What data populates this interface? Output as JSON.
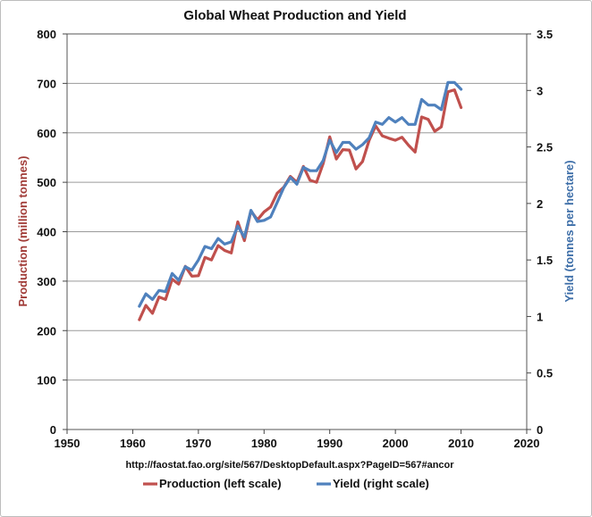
{
  "chart_data": {
    "type": "line",
    "title": "Global Wheat Production and Yield",
    "ylabel": "Production (million tonnes)",
    "y2label": "Yield (tonnes per hectare)",
    "source": "http://faostat.fao.org/site/567/DesktopDefault.aspx?PageID=567#ancor",
    "xlim": [
      1950,
      2020
    ],
    "ylim": [
      0,
      800
    ],
    "y2lim": [
      0,
      3.5
    ],
    "xticks": [
      "1950",
      "1960",
      "1970",
      "1980",
      "1990",
      "2000",
      "2010",
      "2020"
    ],
    "yticks": [
      "0",
      "100",
      "200",
      "300",
      "400",
      "500",
      "600",
      "700",
      "800"
    ],
    "y2ticks": [
      "0",
      "0.5",
      "1",
      "1.5",
      "2",
      "2.5",
      "3",
      "3.5"
    ],
    "grid": true,
    "legend_position": "bottom",
    "x": [
      1961,
      1962,
      1963,
      1964,
      1965,
      1966,
      1967,
      1968,
      1969,
      1970,
      1971,
      1972,
      1973,
      1974,
      1975,
      1976,
      1977,
      1978,
      1979,
      1980,
      1981,
      1982,
      1983,
      1984,
      1985,
      1986,
      1987,
      1988,
      1989,
      1990,
      1991,
      1992,
      1993,
      1994,
      1995,
      1996,
      1997,
      1998,
      1999,
      2000,
      2001,
      2002,
      2003,
      2004,
      2005,
      2006,
      2007,
      2008,
      2009,
      2010
    ],
    "series": [
      {
        "name": "Production (left scale)",
        "axis": "left",
        "color": "#c0504d",
        "values": [
          222,
          251,
          235,
          268,
          263,
          304,
          294,
          330,
          310,
          311,
          348,
          343,
          372,
          362,
          357,
          420,
          382,
          442,
          424,
          440,
          450,
          478,
          490,
          512,
          500,
          532,
          504,
          500,
          538,
          592,
          547,
          566,
          565,
          527,
          542,
          585,
          614,
          594,
          589,
          585,
          591,
          575,
          561,
          632,
          627,
          603,
          612,
          683,
          687,
          651
        ]
      },
      {
        "name": "Yield (right scale)",
        "axis": "right",
        "color": "#4f81bd",
        "values": [
          1.09,
          1.2,
          1.15,
          1.23,
          1.22,
          1.38,
          1.32,
          1.44,
          1.41,
          1.5,
          1.62,
          1.6,
          1.69,
          1.64,
          1.66,
          1.8,
          1.7,
          1.94,
          1.84,
          1.85,
          1.88,
          2.01,
          2.14,
          2.23,
          2.17,
          2.32,
          2.29,
          2.29,
          2.38,
          2.56,
          2.45,
          2.54,
          2.54,
          2.48,
          2.52,
          2.58,
          2.72,
          2.7,
          2.76,
          2.72,
          2.76,
          2.7,
          2.7,
          2.92,
          2.87,
          2.87,
          2.83,
          3.07,
          3.07,
          3.01
        ]
      }
    ]
  }
}
